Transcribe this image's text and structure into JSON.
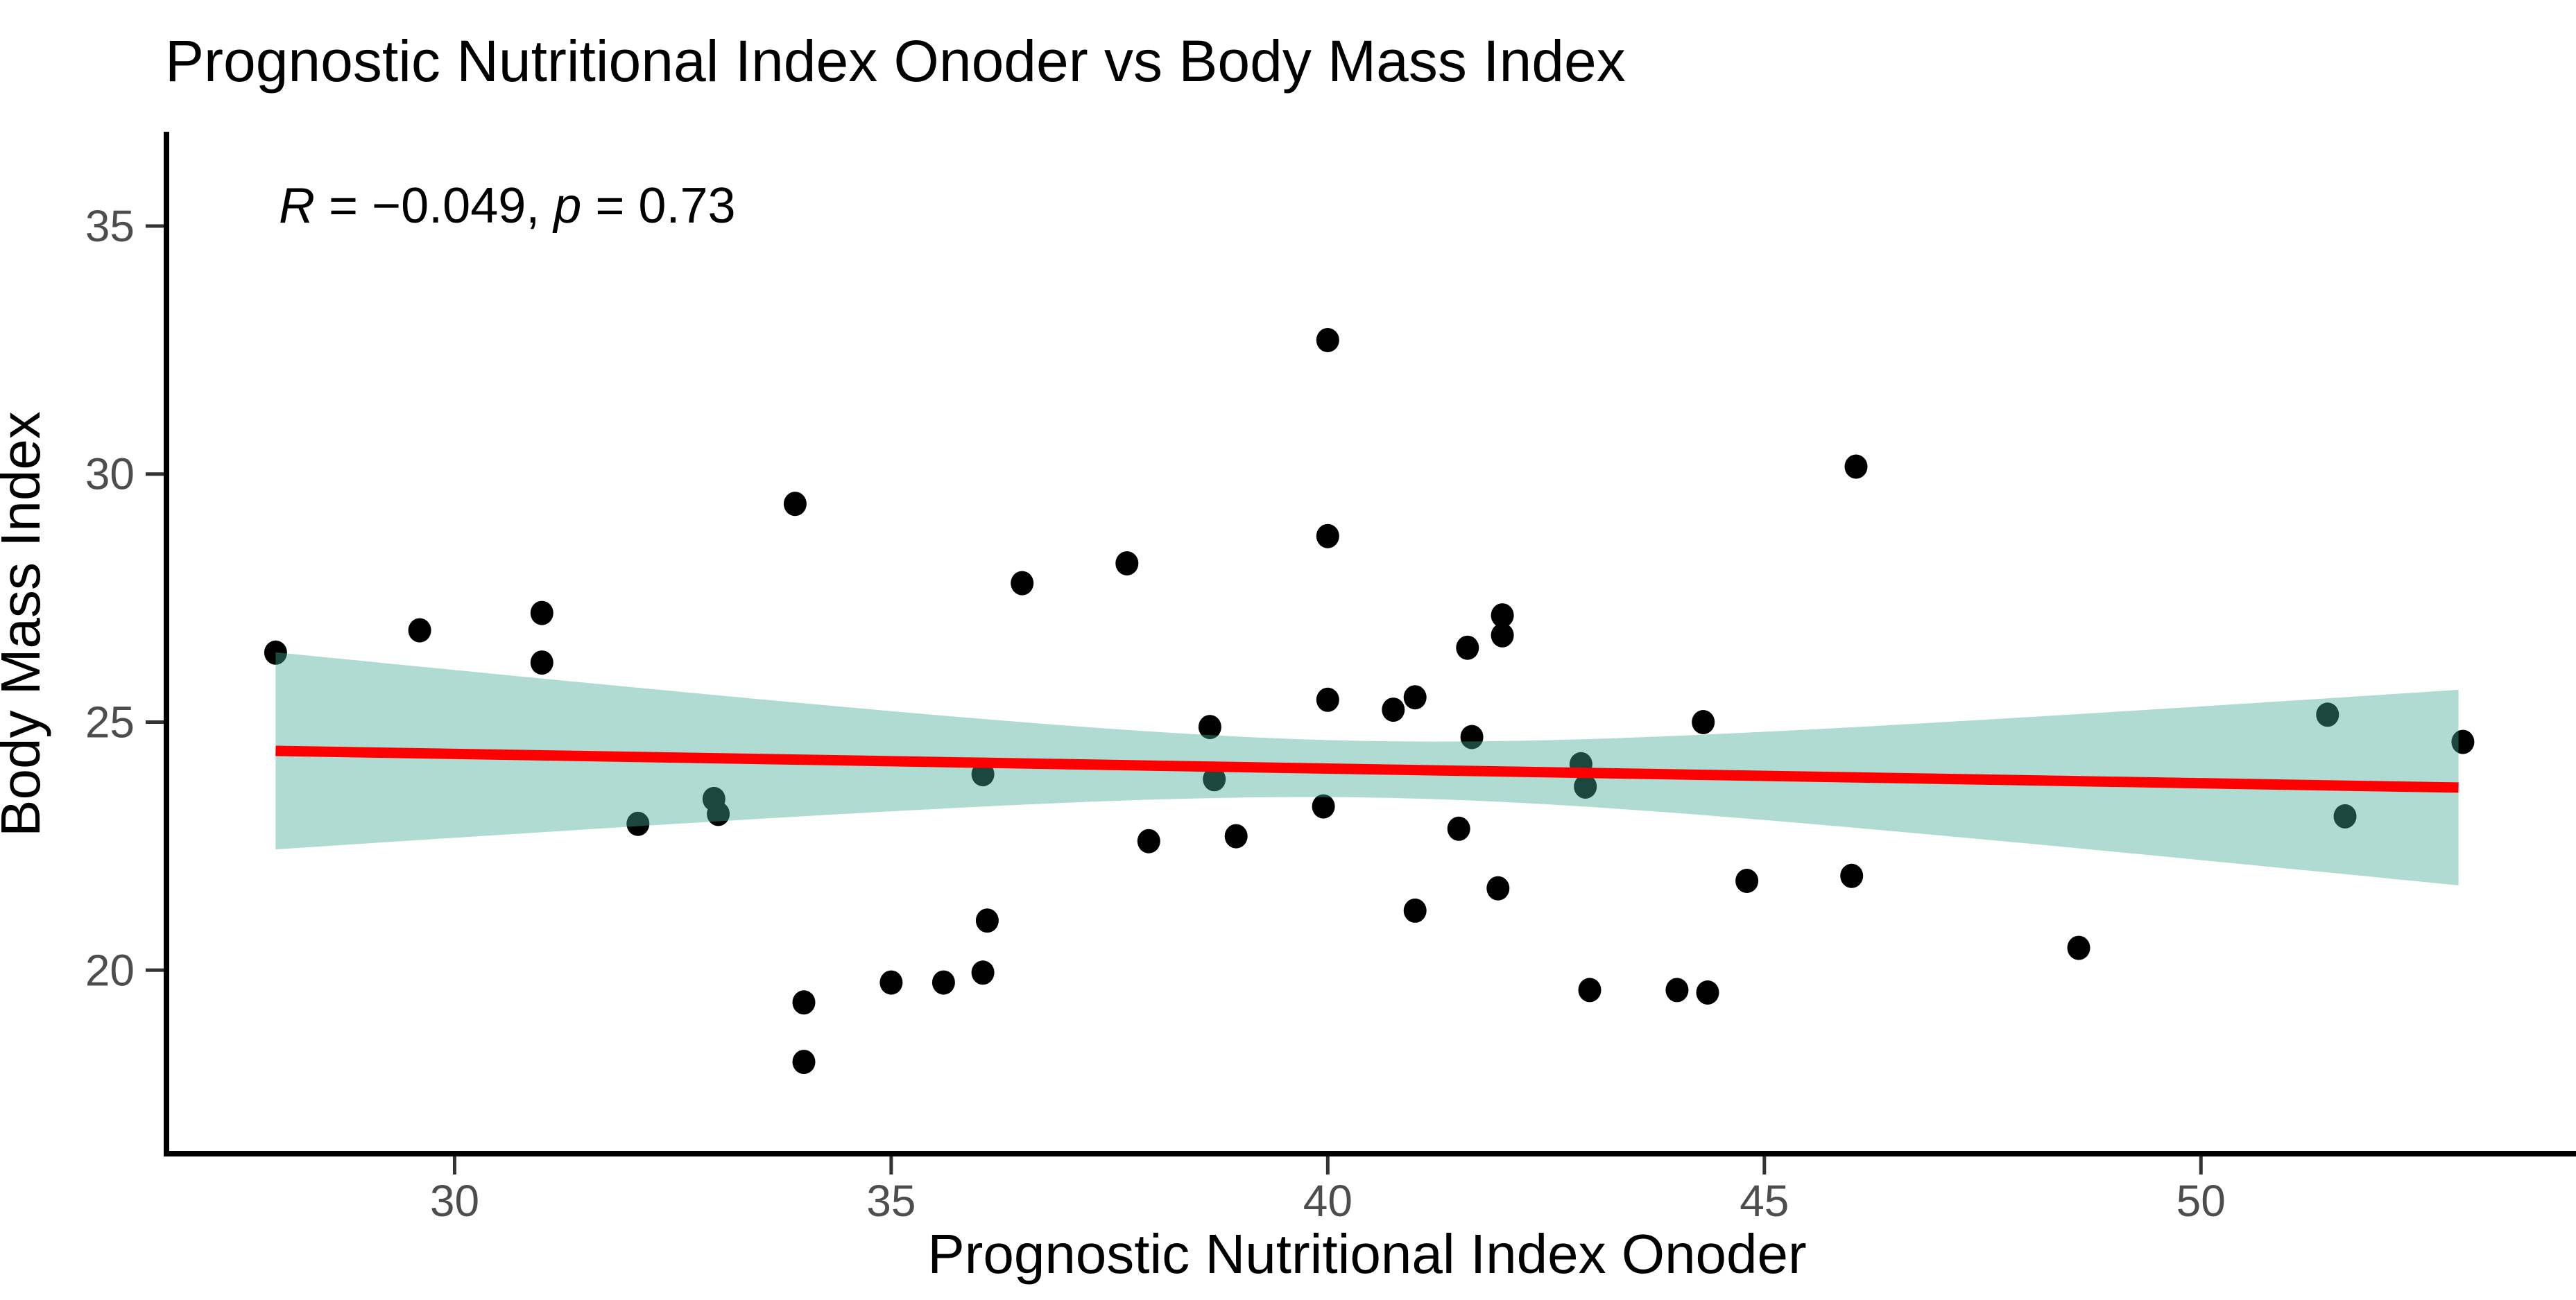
{
  "title": "Prognostic Nutritional Index Onoder vs Body Mass Index",
  "annotation": {
    "r_label": "R",
    "mid_text": " = −0.049, ",
    "p_label": "p",
    "tail_text": " = 0.73"
  },
  "chart_data": {
    "type": "scatter",
    "title": "Prognostic Nutritional Index Onoder vs Body Mass Index",
    "xlabel": "Prognostic Nutritional Index Onoder",
    "ylabel": "Body Mass Index",
    "annotation_text": "R = −0.049, p = 0.73",
    "stats": {
      "R": -0.049,
      "p": 0.73
    },
    "xlim": [
      26.7,
      54.2
    ],
    "ylim": [
      16.3,
      36.9
    ],
    "x_ticks": [
      30,
      35,
      40,
      45,
      50
    ],
    "y_ticks": [
      20,
      25,
      30,
      35
    ],
    "grid": false,
    "legend": "none",
    "points": [
      [
        27.95,
        26.4
      ],
      [
        29.6,
        26.85
      ],
      [
        31.0,
        27.2
      ],
      [
        31.0,
        26.2
      ],
      [
        32.1,
        22.95
      ],
      [
        32.97,
        23.45
      ],
      [
        33.02,
        23.15
      ],
      [
        33.9,
        29.4
      ],
      [
        34.0,
        19.35
      ],
      [
        34.0,
        18.15
      ],
      [
        35.0,
        19.75
      ],
      [
        35.6,
        19.75
      ],
      [
        36.05,
        19.95
      ],
      [
        36.1,
        21.0
      ],
      [
        36.05,
        23.95
      ],
      [
        36.5,
        27.8
      ],
      [
        37.7,
        28.2
      ],
      [
        37.95,
        22.6
      ],
      [
        38.65,
        24.9
      ],
      [
        38.7,
        23.85
      ],
      [
        38.95,
        22.7
      ],
      [
        39.95,
        23.3
      ],
      [
        40.0,
        32.7
      ],
      [
        40.0,
        28.75
      ],
      [
        40.0,
        25.45
      ],
      [
        40.75,
        25.25
      ],
      [
        41.0,
        25.5
      ],
      [
        41.0,
        21.2
      ],
      [
        41.5,
        22.85
      ],
      [
        41.6,
        26.5
      ],
      [
        41.65,
        24.7
      ],
      [
        41.95,
        21.65
      ],
      [
        42.0,
        27.15
      ],
      [
        42.0,
        26.75
      ],
      [
        42.9,
        24.15
      ],
      [
        42.95,
        23.7
      ],
      [
        43.0,
        19.6
      ],
      [
        44.0,
        19.6
      ],
      [
        44.35,
        19.55
      ],
      [
        44.3,
        25.0
      ],
      [
        44.8,
        21.8
      ],
      [
        46.05,
        30.15
      ],
      [
        46.0,
        21.9
      ],
      [
        48.6,
        20.45
      ],
      [
        51.45,
        25.15
      ],
      [
        51.65,
        23.1
      ],
      [
        53.0,
        24.6
      ]
    ],
    "trend": {
      "type": "linear",
      "x_start": 27.95,
      "x_end": 52.95,
      "y_start": 24.42,
      "y_end": 23.68,
      "color": "#FF0000"
    },
    "confidence_band": {
      "x_start": 27.95,
      "x_end": 52.95,
      "half_width_at_center": 0.57,
      "x_center": 40.5,
      "spread_scale": 3.76,
      "fill": "rgba(64,170,150,0.42)"
    },
    "colors": {
      "point": "#000000",
      "trend_line": "#FF0000",
      "band_fill": "rgba(64,170,150,0.42)",
      "spine": "#000000",
      "tick": "#333333",
      "tick_label": "#4D4D4D",
      "text": "#000000"
    }
  }
}
